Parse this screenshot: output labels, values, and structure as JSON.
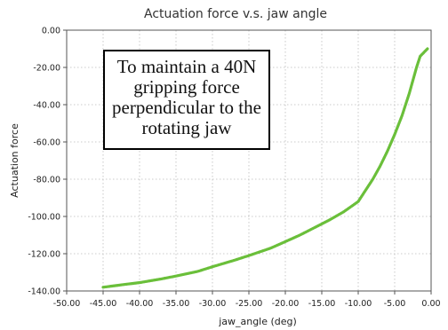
{
  "chart_data": {
    "type": "line",
    "title": "Actuation force v.s. jaw angle",
    "xlabel": "jaw_angle (deg)",
    "ylabel": "Actuation force",
    "xlim": [
      -50,
      0
    ],
    "ylim": [
      -140,
      0
    ],
    "x_ticks": [
      "-50.00",
      "-45.00",
      "-40.00",
      "-35.00",
      "-30.00",
      "-25.00",
      "-20.00",
      "-15.00",
      "-10.00",
      "-5.00",
      "0.00"
    ],
    "y_ticks": [
      "0.00",
      "-20.00",
      "-40.00",
      "-60.00",
      "-80.00",
      "-100.00",
      "-120.00",
      "-140.00"
    ],
    "grid": true,
    "annotation": [
      "To maintain a 40N",
      "gripping force",
      "perpendicular to the",
      "rotating jaw"
    ],
    "series": [
      {
        "color": "#6abf3a",
        "x": [
          -45,
          -42,
          -40,
          -37,
          -35,
          -32,
          -30,
          -27,
          -25,
          -22,
          -20,
          -18,
          -16,
          -14,
          -12,
          -10,
          -9,
          -8,
          -7,
          -6,
          -5,
          -4,
          -3,
          -2,
          -1.5,
          -1,
          -0.5
        ],
        "y": [
          -138,
          -136.5,
          -135.5,
          -133.5,
          -132,
          -129.5,
          -127,
          -123.5,
          -121,
          -117,
          -113.5,
          -110,
          -106,
          -102,
          -97.5,
          -92,
          -86,
          -80,
          -73,
          -65,
          -56,
          -46,
          -34,
          -20,
          -14,
          -12,
          -10
        ]
      }
    ]
  }
}
